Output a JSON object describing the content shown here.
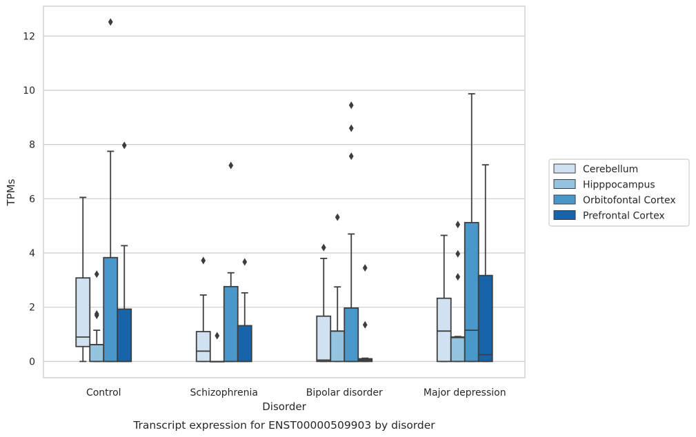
{
  "chart_data": {
    "type": "boxplot",
    "caption": "Transcript expression for ENST00000509903 by disorder",
    "xlabel": "Disorder",
    "ylabel": "TPMs",
    "ylim": [
      -0.6,
      13.1
    ],
    "yticks": [
      0,
      2,
      4,
      6,
      8,
      10,
      12
    ],
    "grid": true,
    "legend_position": "right",
    "categories": [
      "Control",
      "Schizophrenia",
      "Bipolar disorder",
      "Major depression"
    ],
    "series": [
      {
        "name": "Cerebellum",
        "color": "#d0e1f2",
        "boxes": [
          {
            "whisker_low": 0,
            "q1": 0.55,
            "median": 0.9,
            "q3": 3.08,
            "whisker_high": 6.05,
            "outliers": []
          },
          {
            "whisker_low": 0,
            "q1": 0,
            "median": 0.38,
            "q3": 1.1,
            "whisker_high": 2.45,
            "outliers": [
              3.72
            ]
          },
          {
            "whisker_low": 0,
            "q1": 0,
            "median": 0.05,
            "q3": 1.67,
            "whisker_high": 3.8,
            "outliers": [
              4.2
            ]
          },
          {
            "whisker_low": 0,
            "q1": 0,
            "median": 1.12,
            "q3": 2.33,
            "whisker_high": 4.65,
            "outliers": []
          }
        ]
      },
      {
        "name": "Hipppocampus",
        "color": "#94c4df",
        "boxes": [
          {
            "whisker_low": 0,
            "q1": 0,
            "median": 0.62,
            "q3": 0.62,
            "whisker_high": 1.15,
            "outliers": [
              1.7,
              1.75,
              3.22
            ]
          },
          {
            "whisker_low": 0,
            "q1": 0,
            "median": 0,
            "q3": 0,
            "whisker_high": 0,
            "outliers": [
              0.95
            ]
          },
          {
            "whisker_low": 0,
            "q1": 0,
            "median": 1.12,
            "q3": 1.12,
            "whisker_high": 2.75,
            "outliers": [
              5.32
            ]
          },
          {
            "whisker_low": 0,
            "q1": 0,
            "median": 0.88,
            "q3": 0.9,
            "whisker_high": 0.92,
            "outliers": [
              3.12,
              3.97,
              5.05
            ]
          }
        ]
      },
      {
        "name": "Orbitofontal Cortex",
        "color": "#4a98c9",
        "boxes": [
          {
            "whisker_low": 0,
            "q1": 0,
            "median": 0,
            "q3": 3.83,
            "whisker_high": 7.75,
            "outliers": [
              12.52
            ]
          },
          {
            "whisker_low": 0,
            "q1": 0,
            "median": 0,
            "q3": 2.76,
            "whisker_high": 3.27,
            "outliers": [
              7.23
            ]
          },
          {
            "whisker_low": 0,
            "q1": 0,
            "median": 0,
            "q3": 1.97,
            "whisker_high": 4.7,
            "outliers": [
              7.57,
              8.6,
              9.45
            ]
          },
          {
            "whisker_low": 0,
            "q1": 0,
            "median": 1.15,
            "q3": 5.12,
            "whisker_high": 9.87,
            "outliers": []
          }
        ]
      },
      {
        "name": "Prefrontal Cortex",
        "color": "#1764ab",
        "boxes": [
          {
            "whisker_low": 0,
            "q1": 0,
            "median": 0,
            "q3": 1.93,
            "whisker_high": 4.27,
            "outliers": [
              7.97
            ]
          },
          {
            "whisker_low": 0,
            "q1": 0,
            "median": 0,
            "q3": 1.32,
            "whisker_high": 2.53,
            "outliers": [
              3.67
            ]
          },
          {
            "whisker_low": 0,
            "q1": 0,
            "median": 0.05,
            "q3": 0.1,
            "whisker_high": 0.12,
            "outliers": [
              1.35,
              3.45
            ]
          },
          {
            "whisker_low": 0,
            "q1": 0,
            "median": 0.25,
            "q3": 3.17,
            "whisker_high": 7.25,
            "outliers": []
          }
        ]
      }
    ]
  }
}
